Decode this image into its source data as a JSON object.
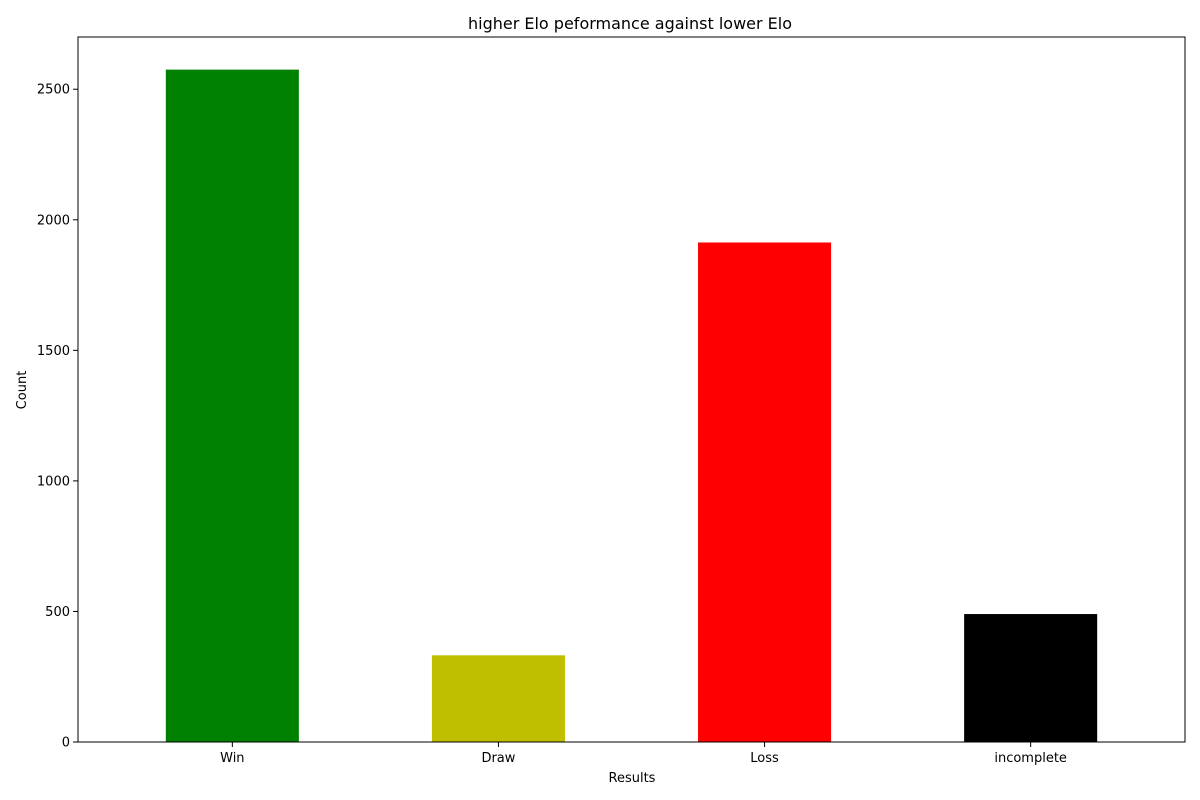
{
  "chart_data": {
    "type": "bar",
    "title": "higher Elo peformance against lower Elo",
    "xlabel": "Results",
    "ylabel": "Count",
    "categories": [
      "Win",
      "Draw",
      "Loss",
      "incomplete"
    ],
    "values": [
      2575,
      332,
      1913,
      490
    ],
    "colors": [
      "#008000",
      "#bfbf00",
      "#ff0000",
      "#000000"
    ],
    "ylim": [
      0,
      2700
    ],
    "yticks": [
      0,
      500,
      1000,
      1500,
      2000,
      2500
    ],
    "grid": false,
    "legend": "none"
  }
}
